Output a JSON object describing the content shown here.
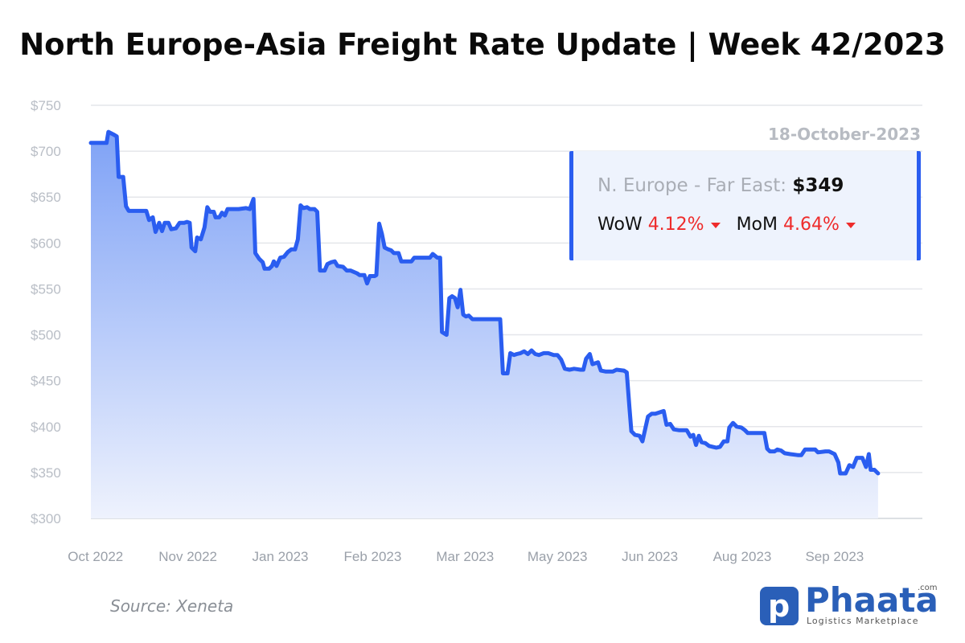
{
  "title": "North Europe-Asia Freight Rate Update | Week 42/2023",
  "info": {
    "date": "18-October-2023",
    "route_label": "N. Europe - Far East:",
    "route_value": "$349",
    "wow_label": "WoW",
    "wow_value": "4.12%",
    "mom_label": "MoM",
    "mom_value": "4.64%"
  },
  "source": "Source: Xeneta",
  "logo": {
    "name": "Phaata",
    "tagline": "Logistics Marketplace",
    "com": ".com",
    "mark": "p"
  },
  "colors": {
    "line": "#2a5df0",
    "fill_top": "#7fa2f6",
    "fill_bottom": "#eef2fd",
    "down": "#ee2b2b"
  },
  "chart_data": {
    "type": "area",
    "title": "North Europe-Asia Freight Rate Update | Week 42/2023",
    "series": [
      {
        "name": "N. Europe - Far East"
      }
    ],
    "ylim": [
      300,
      750
    ],
    "yticks": [
      300,
      350,
      400,
      450,
      500,
      550,
      600,
      650,
      700,
      750
    ],
    "ytick_labels": [
      "$300",
      "$350",
      "$400",
      "$450",
      "$500",
      "$550",
      "$600",
      "$650",
      "$700",
      "$750"
    ],
    "xtick_labels": [
      "Oct 2022",
      "Nov 2022",
      "Jan 2023",
      "Feb 2023",
      "Mar 2023",
      "May 2023",
      "Jun 2023",
      "Aug 2023",
      "Sep 2023"
    ],
    "xtick_positions": [
      0,
      1,
      2,
      3,
      4,
      5,
      6,
      7,
      8
    ],
    "xlim": [
      -0.05,
      8.95
    ],
    "grid": true,
    "points": [
      [
        -0.05,
        709
      ],
      [
        0.05,
        709
      ],
      [
        0.12,
        709
      ],
      [
        0.14,
        721
      ],
      [
        0.2,
        718
      ],
      [
        0.23,
        716
      ],
      [
        0.25,
        672
      ],
      [
        0.3,
        672
      ],
      [
        0.33,
        640
      ],
      [
        0.36,
        635
      ],
      [
        0.45,
        635
      ],
      [
        0.55,
        635
      ],
      [
        0.58,
        625
      ],
      [
        0.62,
        628
      ],
      [
        0.65,
        612
      ],
      [
        0.69,
        622
      ],
      [
        0.72,
        613
      ],
      [
        0.75,
        622
      ],
      [
        0.79,
        622
      ],
      [
        0.82,
        615
      ],
      [
        0.87,
        616
      ],
      [
        0.91,
        622
      ],
      [
        0.96,
        622
      ],
      [
        0.99,
        623
      ],
      [
        1.02,
        622
      ],
      [
        1.04,
        595
      ],
      [
        1.08,
        591
      ],
      [
        1.1,
        606
      ],
      [
        1.14,
        604
      ],
      [
        1.18,
        617
      ],
      [
        1.21,
        639
      ],
      [
        1.24,
        634
      ],
      [
        1.28,
        634
      ],
      [
        1.3,
        628
      ],
      [
        1.34,
        628
      ],
      [
        1.37,
        633
      ],
      [
        1.4,
        630
      ],
      [
        1.43,
        637
      ],
      [
        1.55,
        637
      ],
      [
        1.63,
        638
      ],
      [
        1.67,
        637
      ],
      [
        1.71,
        648
      ],
      [
        1.73,
        589
      ],
      [
        1.77,
        583
      ],
      [
        1.81,
        579
      ],
      [
        1.83,
        572
      ],
      [
        1.88,
        572
      ],
      [
        1.91,
        575
      ],
      [
        1.93,
        580
      ],
      [
        1.96,
        575
      ],
      [
        2.0,
        584
      ],
      [
        2.04,
        585
      ],
      [
        2.08,
        590
      ],
      [
        2.12,
        593
      ],
      [
        2.16,
        593
      ],
      [
        2.19,
        604
      ],
      [
        2.22,
        641
      ],
      [
        2.25,
        638
      ],
      [
        2.29,
        639
      ],
      [
        2.32,
        637
      ],
      [
        2.37,
        637
      ],
      [
        2.4,
        634
      ],
      [
        2.43,
        570
      ],
      [
        2.48,
        570
      ],
      [
        2.51,
        577
      ],
      [
        2.55,
        579
      ],
      [
        2.59,
        580
      ],
      [
        2.62,
        575
      ],
      [
        2.68,
        574
      ],
      [
        2.72,
        570
      ],
      [
        2.76,
        570
      ],
      [
        2.83,
        567
      ],
      [
        2.86,
        565
      ],
      [
        2.91,
        565
      ],
      [
        2.94,
        556
      ],
      [
        2.97,
        564
      ],
      [
        3.02,
        564
      ],
      [
        3.04,
        565
      ],
      [
        3.07,
        621
      ],
      [
        3.1,
        610
      ],
      [
        3.13,
        595
      ],
      [
        3.17,
        593
      ],
      [
        3.2,
        592
      ],
      [
        3.23,
        589
      ],
      [
        3.28,
        589
      ],
      [
        3.31,
        580
      ],
      [
        3.42,
        580
      ],
      [
        3.45,
        584
      ],
      [
        3.55,
        584
      ],
      [
        3.62,
        584
      ],
      [
        3.65,
        588
      ],
      [
        3.7,
        584
      ],
      [
        3.73,
        584
      ],
      [
        3.75,
        503
      ],
      [
        3.8,
        500
      ],
      [
        3.83,
        540
      ],
      [
        3.86,
        542
      ],
      [
        3.89,
        540
      ],
      [
        3.92,
        530
      ],
      [
        3.95,
        549
      ],
      [
        3.98,
        522
      ],
      [
        4.01,
        520
      ],
      [
        4.04,
        521
      ],
      [
        4.08,
        517
      ],
      [
        4.38,
        517
      ],
      [
        4.41,
        458
      ],
      [
        4.46,
        458
      ],
      [
        4.49,
        480
      ],
      [
        4.53,
        478
      ],
      [
        4.56,
        479
      ],
      [
        4.6,
        480
      ],
      [
        4.64,
        482
      ],
      [
        4.68,
        479
      ],
      [
        4.72,
        483
      ],
      [
        4.76,
        479
      ],
      [
        4.8,
        478
      ],
      [
        4.85,
        480
      ],
      [
        4.9,
        480
      ],
      [
        4.96,
        478
      ],
      [
        5.0,
        478
      ],
      [
        5.04,
        473
      ],
      [
        5.08,
        463
      ],
      [
        5.13,
        462
      ],
      [
        5.18,
        463
      ],
      [
        5.25,
        462
      ],
      [
        5.28,
        462
      ],
      [
        5.31,
        474
      ],
      [
        5.35,
        479
      ],
      [
        5.38,
        468
      ],
      [
        5.44,
        470
      ],
      [
        5.47,
        461
      ],
      [
        5.52,
        460
      ],
      [
        5.6,
        460
      ],
      [
        5.64,
        462
      ],
      [
        5.72,
        461
      ],
      [
        5.75,
        459
      ],
      [
        5.78,
        420
      ],
      [
        5.8,
        395
      ],
      [
        5.84,
        391
      ],
      [
        5.89,
        390
      ],
      [
        5.92,
        384
      ],
      [
        5.98,
        411
      ],
      [
        6.02,
        414
      ],
      [
        6.06,
        414
      ],
      [
        6.15,
        417
      ],
      [
        6.18,
        402
      ],
      [
        6.22,
        403
      ],
      [
        6.26,
        397
      ],
      [
        6.32,
        396
      ],
      [
        6.4,
        396
      ],
      [
        6.44,
        389
      ],
      [
        6.47,
        391
      ],
      [
        6.5,
        380
      ],
      [
        6.53,
        390
      ],
      [
        6.56,
        383
      ],
      [
        6.6,
        382
      ],
      [
        6.64,
        379
      ],
      [
        6.68,
        378
      ],
      [
        6.72,
        377
      ],
      [
        6.76,
        378
      ],
      [
        6.8,
        384
      ],
      [
        6.84,
        384
      ],
      [
        6.86,
        399
      ],
      [
        6.9,
        404
      ],
      [
        6.94,
        400
      ],
      [
        6.99,
        399
      ],
      [
        7.03,
        396
      ],
      [
        7.06,
        393
      ],
      [
        7.24,
        393
      ],
      [
        7.27,
        376
      ],
      [
        7.3,
        373
      ],
      [
        7.35,
        373
      ],
      [
        7.38,
        375
      ],
      [
        7.42,
        374
      ],
      [
        7.46,
        371
      ],
      [
        7.52,
        370
      ],
      [
        7.6,
        369
      ],
      [
        7.64,
        369
      ],
      [
        7.68,
        375
      ],
      [
        7.79,
        375
      ],
      [
        7.82,
        372
      ],
      [
        7.9,
        373
      ],
      [
        7.94,
        373
      ],
      [
        8.0,
        370
      ],
      [
        8.04,
        361
      ],
      [
        8.06,
        349
      ],
      [
        8.12,
        349
      ],
      [
        8.16,
        358
      ],
      [
        8.2,
        356
      ],
      [
        8.24,
        366
      ],
      [
        8.3,
        366
      ],
      [
        8.34,
        356
      ],
      [
        8.37,
        370
      ],
      [
        8.39,
        353
      ],
      [
        8.43,
        353
      ],
      [
        8.47,
        349
      ]
    ]
  }
}
